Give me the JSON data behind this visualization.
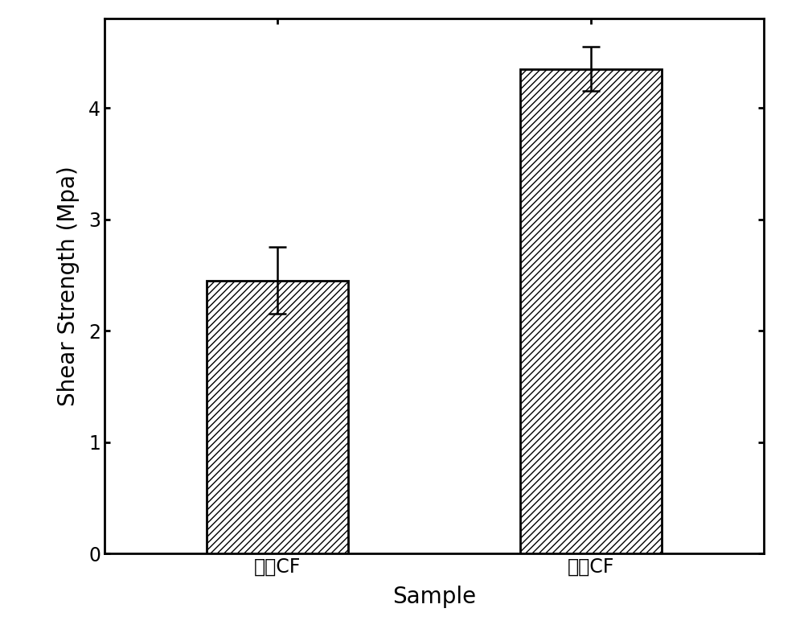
{
  "categories": [
    "原始CF",
    "改性CF"
  ],
  "values": [
    2.45,
    4.35
  ],
  "errors": [
    0.3,
    0.2
  ],
  "ylabel": "Shear Strength (Mpa)",
  "xlabel": "Sample",
  "ylim": [
    0,
    4.8
  ],
  "yticks": [
    0,
    1,
    2,
    3,
    4
  ],
  "bar_color": "#ffffff",
  "hatch_color": "#000000",
  "hatch": "////",
  "edge_color": "#000000",
  "bar_width": 0.45,
  "figsize": [
    10.0,
    7.82
  ],
  "dpi": 100,
  "label_fontsize": 20,
  "tick_fontsize": 17,
  "errorbar_capsize": 8,
  "errorbar_linewidth": 1.8,
  "errorbar_capthick": 1.8,
  "spine_linewidth": 2.0
}
